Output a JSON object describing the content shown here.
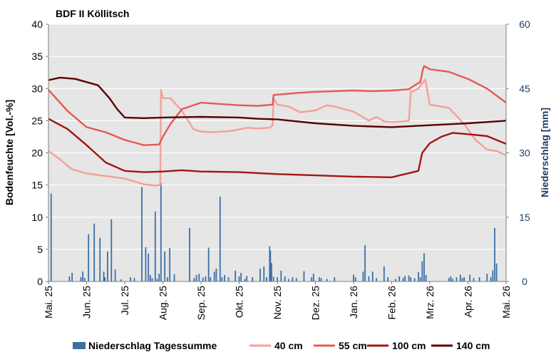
{
  "chart_data": {
    "type": "line",
    "title": "BDF II Köllitsch",
    "ylabel": "Bodenfeuchte [Vol.-%]",
    "y2label": "Niederschlag [mm]",
    "ylim": [
      0,
      40
    ],
    "y2lim": [
      0,
      60
    ],
    "yticks": [
      0,
      5,
      10,
      15,
      20,
      25,
      30,
      35,
      40
    ],
    "y2ticks": [
      0,
      15,
      30,
      45,
      60
    ],
    "xlim": [
      0,
      12
    ],
    "categories": [
      "Mai. 25",
      "Jun. 25",
      "Jul. 25",
      "Aug. 25",
      "Sep. 25",
      "Okt. 25",
      "Nov. 25",
      "Dez. 25",
      "Jan. 26",
      "Feb. 26",
      "Mrz. 26",
      "Apr. 26",
      "Mai. 26"
    ],
    "grid": true,
    "legend_position": "bottom",
    "colors": {
      "plot_bg": "#e6e6e6",
      "precip": "#3d6fa6",
      "axis_right": "#1f3f66",
      "grid": "#ffffff"
    },
    "series": [
      {
        "name": "40 cm",
        "color": "#f4a09a",
        "x": [
          0,
          0.3,
          0.6,
          1.0,
          1.5,
          2.0,
          2.5,
          2.8,
          2.93,
          2.95,
          3.0,
          3.2,
          3.5,
          3.8,
          4.0,
          4.3,
          4.8,
          5.2,
          5.5,
          5.8,
          5.88,
          5.9,
          6.0,
          6.3,
          6.6,
          7.0,
          7.3,
          7.5,
          8.0,
          8.4,
          8.6,
          8.8,
          9.0,
          9.3,
          9.45,
          9.5,
          9.6,
          9.7,
          9.8,
          9.88,
          10.0,
          10.5,
          10.9,
          11.2,
          11.5,
          11.75,
          12.0
        ],
        "y": [
          20.3,
          19.0,
          17.5,
          16.8,
          16.4,
          16.0,
          15.1,
          14.9,
          15.0,
          29.8,
          28.5,
          28.5,
          26.5,
          23.7,
          23.3,
          23.2,
          23.4,
          23.9,
          23.8,
          23.9,
          24.3,
          28.5,
          27.5,
          27.2,
          26.3,
          26.6,
          27.4,
          27.2,
          26.4,
          25.0,
          25.6,
          24.9,
          24.8,
          24.9,
          25.0,
          29.5,
          29.7,
          30.0,
          30.8,
          31.4,
          27.5,
          27.0,
          24.5,
          22.0,
          20.5,
          20.3,
          19.6
        ]
      },
      {
        "name": "55 cm",
        "color": "#e25a56",
        "x": [
          0,
          0.5,
          1.0,
          1.5,
          2.0,
          2.5,
          2.9,
          3.0,
          3.2,
          3.5,
          4.0,
          4.5,
          5.0,
          5.5,
          5.88,
          5.9,
          6.1,
          6.5,
          7.0,
          7.5,
          8.0,
          8.5,
          9.0,
          9.45,
          9.6,
          9.75,
          9.82,
          9.85,
          10.0,
          10.5,
          11.0,
          11.5,
          12.0
        ],
        "y": [
          29.8,
          26.5,
          24.0,
          23.2,
          22.0,
          21.2,
          21.3,
          22.5,
          24.5,
          26.8,
          27.8,
          27.6,
          27.4,
          27.3,
          27.5,
          29.0,
          29.1,
          29.3,
          29.5,
          29.6,
          29.7,
          29.6,
          29.7,
          29.9,
          30.5,
          31.0,
          33.0,
          33.5,
          33.0,
          32.6,
          31.5,
          30.0,
          27.8
        ]
      },
      {
        "name": "100 cm",
        "color": "#a31515",
        "x": [
          0,
          0.5,
          1.0,
          1.5,
          2.0,
          2.5,
          3.0,
          3.5,
          4.0,
          5.0,
          6.0,
          7.0,
          8.0,
          9.0,
          9.7,
          9.8,
          10.0,
          10.3,
          10.6,
          11.0,
          11.5,
          12.0
        ],
        "y": [
          25.3,
          23.7,
          21.2,
          18.5,
          17.2,
          17.0,
          17.1,
          17.3,
          17.1,
          17.0,
          16.7,
          16.5,
          16.3,
          16.2,
          17.2,
          20.0,
          21.5,
          22.5,
          23.1,
          22.9,
          22.6,
          21.4
        ]
      },
      {
        "name": "140 cm",
        "color": "#5a0000",
        "x": [
          0,
          0.3,
          0.7,
          1.0,
          1.3,
          1.6,
          1.8,
          2.0,
          2.5,
          3.0,
          4.0,
          5.0,
          5.5,
          6.0,
          7.0,
          8.0,
          9.0,
          10.0,
          11.0,
          12.0
        ],
        "y": [
          31.3,
          31.7,
          31.5,
          31.0,
          30.5,
          28.5,
          26.8,
          25.5,
          25.4,
          25.5,
          25.6,
          25.5,
          25.3,
          25.2,
          24.6,
          24.2,
          24.0,
          24.3,
          24.6,
          25.0
        ]
      }
    ],
    "precip": {
      "name": "Niederschlag Tagessumme",
      "x": [
        0.07,
        0.55,
        0.62,
        0.85,
        0.9,
        0.95,
        1.05,
        1.2,
        1.35,
        1.45,
        1.48,
        1.55,
        1.65,
        1.75,
        1.9,
        2.15,
        2.25,
        2.45,
        2.55,
        2.62,
        2.67,
        2.72,
        2.8,
        2.85,
        2.9,
        2.95,
        3.05,
        3.12,
        3.18,
        3.3,
        3.7,
        3.82,
        3.88,
        3.95,
        4.05,
        4.12,
        4.2,
        4.25,
        4.35,
        4.4,
        4.5,
        4.55,
        4.62,
        4.72,
        4.9,
        5.0,
        5.05,
        5.15,
        5.2,
        5.35,
        5.55,
        5.65,
        5.72,
        5.8,
        5.82,
        5.85,
        5.9,
        6.0,
        6.1,
        6.2,
        6.3,
        6.4,
        6.5,
        6.7,
        6.9,
        6.95,
        7.1,
        7.15,
        7.3,
        7.5,
        8.0,
        8.05,
        8.25,
        8.3,
        8.4,
        8.5,
        8.6,
        8.8,
        8.9,
        9.1,
        9.2,
        9.3,
        9.35,
        9.45,
        9.5,
        9.6,
        9.7,
        9.75,
        9.8,
        9.85,
        9.9,
        10.5,
        10.55,
        10.6,
        10.7,
        10.8,
        10.85,
        10.9,
        11.05,
        11.15,
        11.3,
        11.5,
        11.6,
        11.65,
        11.7,
        11.75
      ],
      "y": [
        20.5,
        1.2,
        2.0,
        1.0,
        2.3,
        0.8,
        11.0,
        13.5,
        10.2,
        2.3,
        1.0,
        7.0,
        14.5,
        2.8,
        0.5,
        1.0,
        0.8,
        22.0,
        8.0,
        6.5,
        1.5,
        0.8,
        16.3,
        0.6,
        1.8,
        23.0,
        7.0,
        1.0,
        7.8,
        1.7,
        12.5,
        0.8,
        1.5,
        1.8,
        0.9,
        1.2,
        7.9,
        1.0,
        2.3,
        3.0,
        19.8,
        1.0,
        1.5,
        1.0,
        2.5,
        1.2,
        2.0,
        0.6,
        1.3,
        1.0,
        3.0,
        3.5,
        1.0,
        8.2,
        7.2,
        4.3,
        1.1,
        1.0,
        2.5,
        1.2,
        0.6,
        1.0,
        0.8,
        2.4,
        1.0,
        1.8,
        1.0,
        0.8,
        0.6,
        1.0,
        1.6,
        1.0,
        2.3,
        8.5,
        1.2,
        2.3,
        0.8,
        3.5,
        1.0,
        0.6,
        1.2,
        0.8,
        1.3,
        1.4,
        1.0,
        0.8,
        2.2,
        1.0,
        4.7,
        6.6,
        1.5,
        0.8,
        1.2,
        0.6,
        1.0,
        1.6,
        0.8,
        1.0,
        1.6,
        0.8,
        1.0,
        1.8,
        1.0,
        2.6,
        12.5,
        4.2
      ]
    }
  }
}
